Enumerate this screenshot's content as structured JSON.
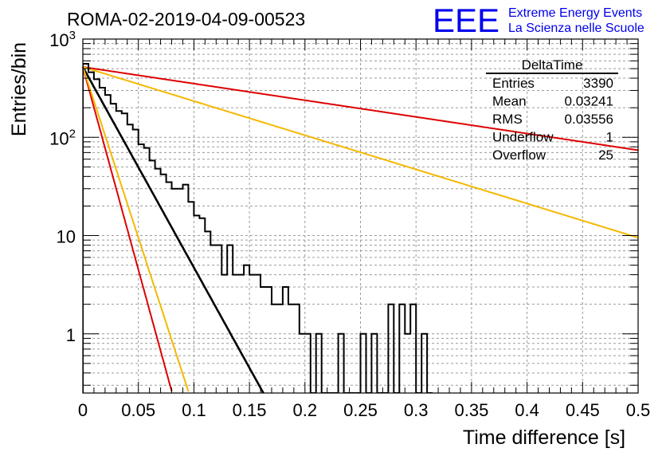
{
  "header": {
    "title": "ROMA-02-2019-04-09-00523",
    "logo_text": "EEE",
    "logo_line1": "Extreme Energy Events",
    "logo_line2": "La Scienza nelle Scuole"
  },
  "stats": {
    "name": "DeltaTime",
    "rows": [
      {
        "label": "Entries",
        "value": "3390"
      },
      {
        "label": "Mean",
        "value": "0.03241"
      },
      {
        "label": "RMS",
        "value": "0.03556"
      },
      {
        "label": "Underflow",
        "value": "1"
      },
      {
        "label": "Overflow",
        "value": "25"
      }
    ]
  },
  "colors": {
    "histogram": "#000000",
    "fit": "#000000",
    "red": "#dd0000",
    "orange": "#f5b800",
    "logo": "#0000ee"
  },
  "chart_data": {
    "type": "histogram",
    "xlabel": "Time difference [s]",
    "ylabel": "Entries/bin",
    "xlim": [
      0,
      0.5
    ],
    "ylim": [
      0.25,
      1000
    ],
    "yscale": "log",
    "grid": true,
    "x_ticks": [
      "0",
      "0.05",
      "0.1",
      "0.15",
      "0.2",
      "0.25",
      "0.3",
      "0.35",
      "0.4",
      "0.45",
      "0.5"
    ],
    "y_ticks": [
      "1",
      "10",
      "10²",
      "10³"
    ],
    "bin_width": 0.005,
    "bin_counts": [
      560,
      460,
      390,
      320,
      270,
      220,
      185,
      175,
      135,
      120,
      85,
      78,
      58,
      48,
      42,
      35,
      30,
      30,
      33,
      22,
      16,
      15,
      11,
      8,
      8,
      4,
      8,
      4,
      4,
      5,
      4,
      4,
      3,
      3,
      2,
      2,
      3,
      2,
      2,
      1,
      1,
      0,
      1,
      0,
      0,
      0,
      1,
      0,
      0,
      0,
      1,
      0,
      1,
      0,
      0,
      2,
      0,
      2,
      1,
      2,
      0,
      1,
      0
    ],
    "lines": [
      {
        "role": "fit",
        "color": "#000000",
        "y0": 520,
        "slope": -47
      },
      {
        "role": "upper",
        "color": "#dd0000",
        "y0": 520,
        "slope": -3.9
      },
      {
        "role": "upper",
        "color": "#f5b800",
        "y0": 520,
        "slope": -8.0
      },
      {
        "role": "lower",
        "color": "#dd0000",
        "y0": 520,
        "slope": -95
      },
      {
        "role": "lower",
        "color": "#f5b800",
        "y0": 520,
        "slope": -80
      }
    ]
  }
}
